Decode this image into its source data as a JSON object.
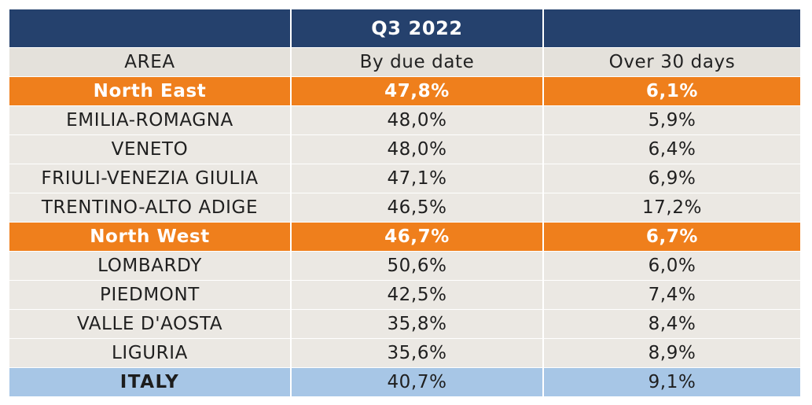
{
  "chart_data": {
    "type": "table",
    "period": "Q3 2022",
    "columns": [
      "AREA",
      "By due date",
      "Over 30 days"
    ],
    "rows": [
      {
        "area": "North East",
        "by_due_date": "47,8%",
        "over_30_days": "6,1%",
        "kind": "region"
      },
      {
        "area": "EMILIA-ROMAGNA",
        "by_due_date": "48,0%",
        "over_30_days": "5,9%",
        "kind": "sub"
      },
      {
        "area": "VENETO",
        "by_due_date": "48,0%",
        "over_30_days": "6,4%",
        "kind": "sub"
      },
      {
        "area": "FRIULI-VENEZIA GIULIA",
        "by_due_date": "47,1%",
        "over_30_days": "6,9%",
        "kind": "sub"
      },
      {
        "area": "TRENTINO-ALTO ADIGE",
        "by_due_date": "46,5%",
        "over_30_days": "17,2%",
        "kind": "sub"
      },
      {
        "area": "North West",
        "by_due_date": "46,7%",
        "over_30_days": "6,7%",
        "kind": "region"
      },
      {
        "area": "LOMBARDY",
        "by_due_date": "50,6%",
        "over_30_days": "6,0%",
        "kind": "sub"
      },
      {
        "area": "PIEDMONT",
        "by_due_date": "42,5%",
        "over_30_days": "7,4%",
        "kind": "sub"
      },
      {
        "area": "VALLE D'AOSTA",
        "by_due_date": "35,8%",
        "over_30_days": "8,4%",
        "kind": "sub"
      },
      {
        "area": "LIGURIA",
        "by_due_date": "35,6%",
        "over_30_days": "8,9%",
        "kind": "sub"
      },
      {
        "area": "ITALY",
        "by_due_date": "40,7%",
        "over_30_days": "9,1%",
        "kind": "total"
      }
    ]
  },
  "colors": {
    "title_bg": "#25416d",
    "header_bg": "#e4e1db",
    "region_bg": "#ef7f1c",
    "row_bg": "#ebe8e3",
    "total_bg": "#a7c6e6"
  }
}
